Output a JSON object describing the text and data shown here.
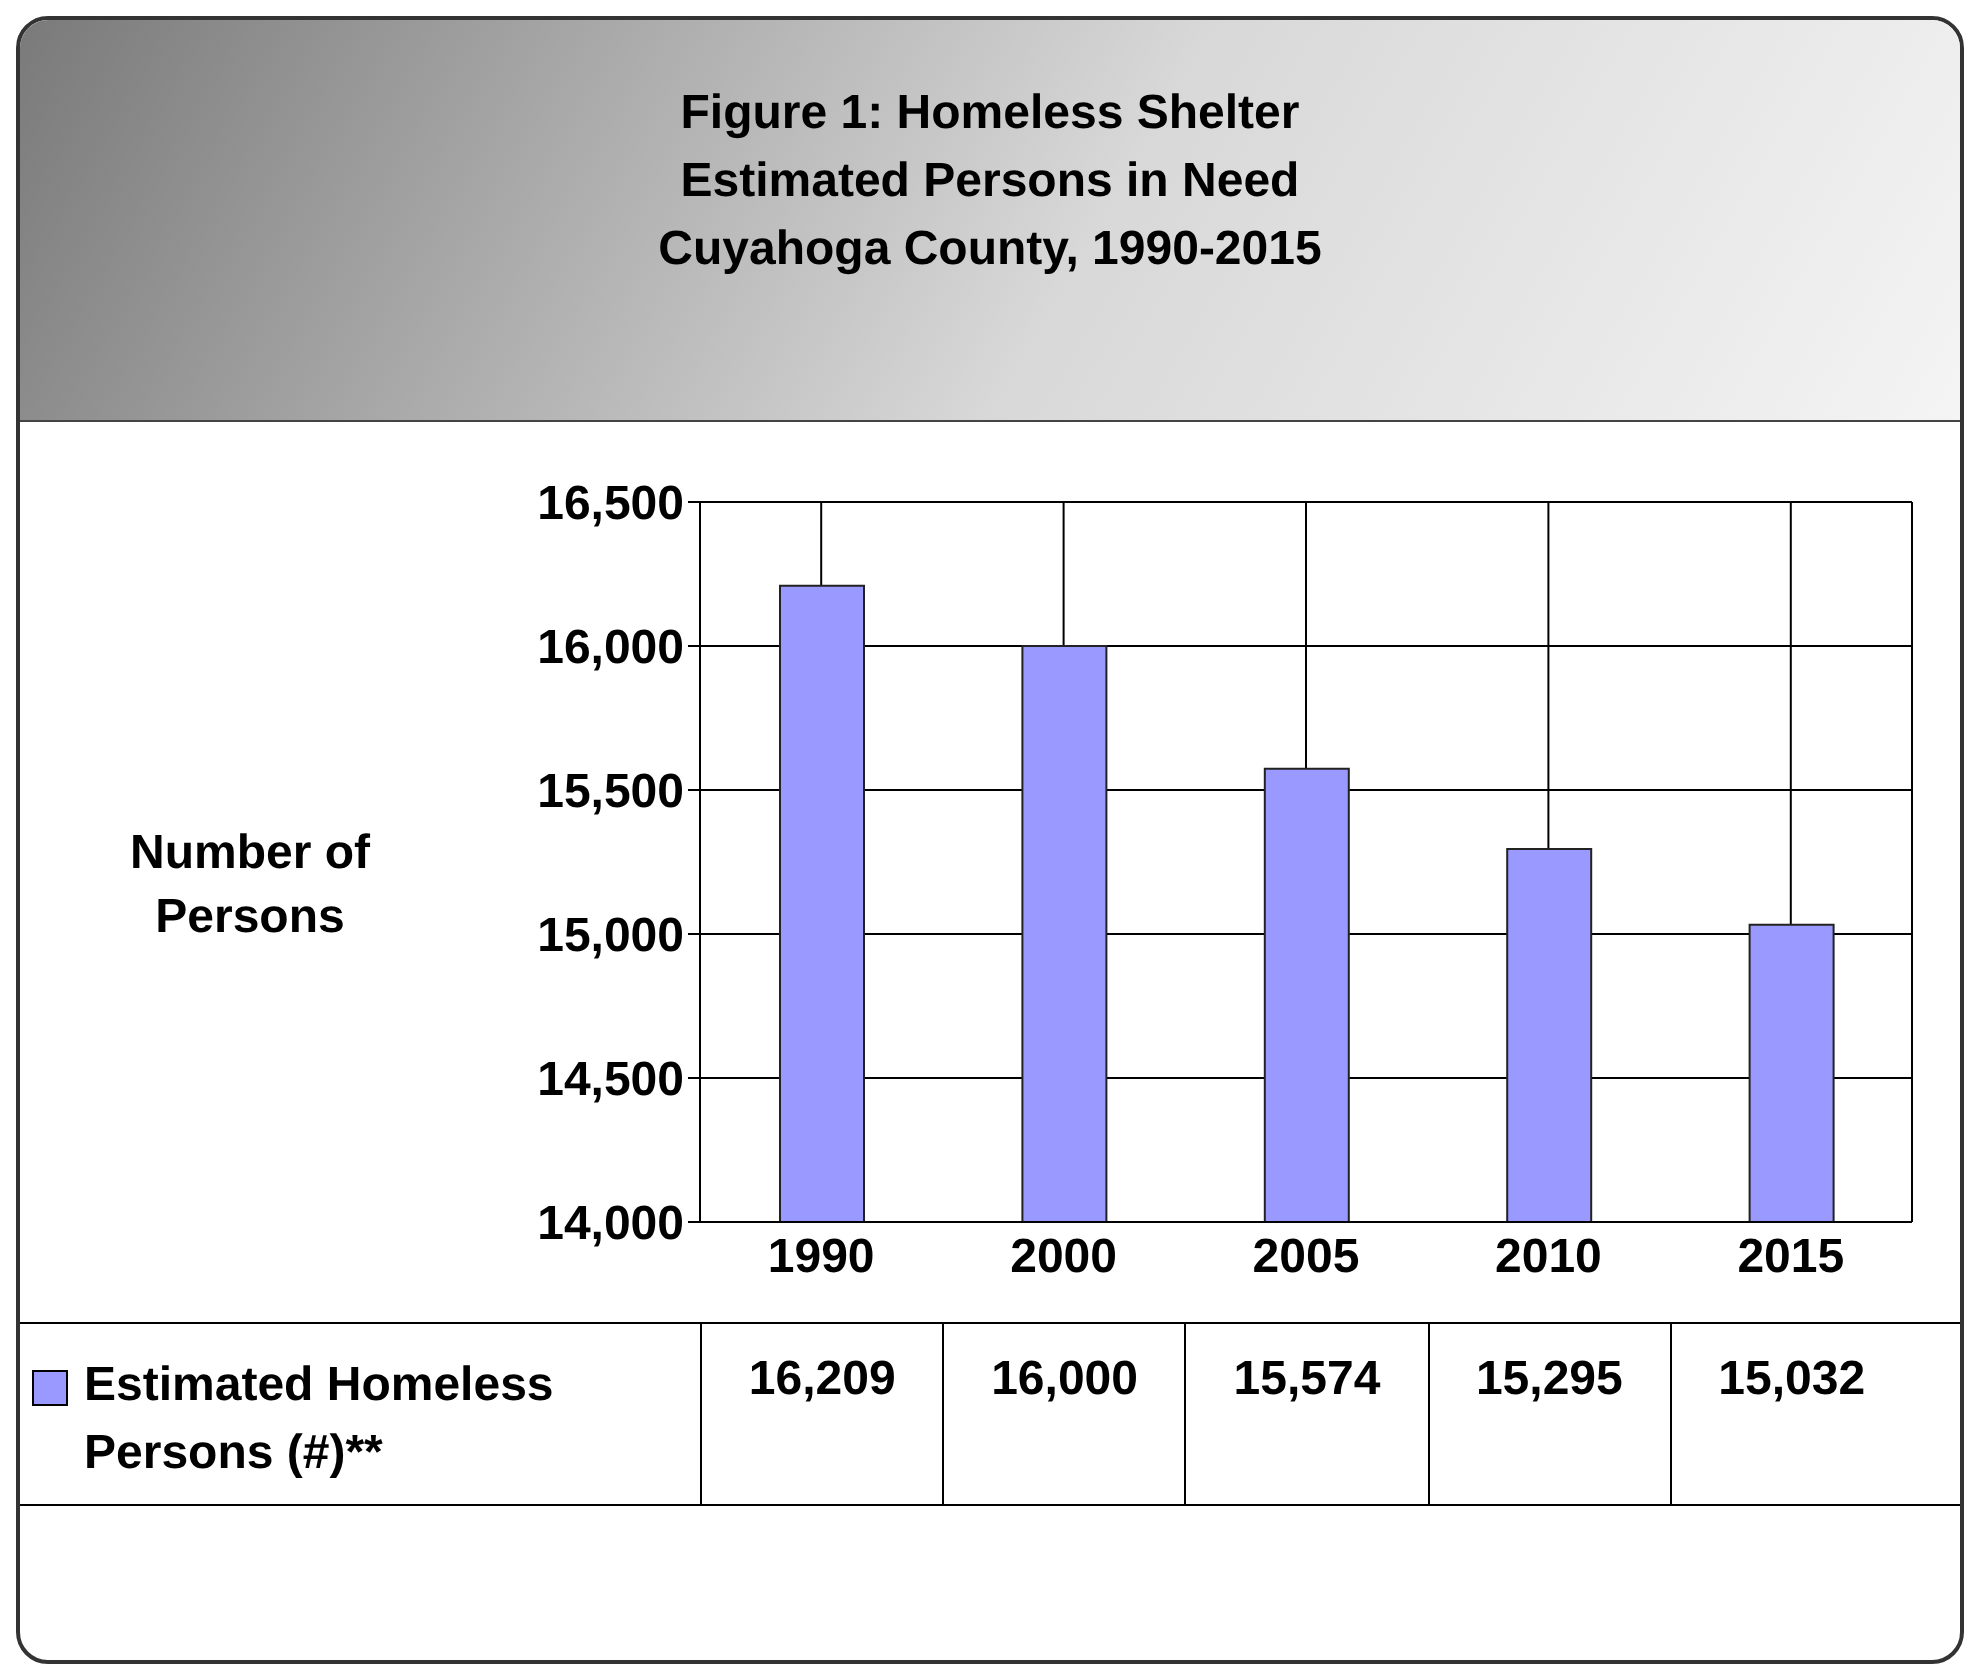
{
  "chart_data": {
    "type": "bar",
    "title": "Figure 1:  Homeless Shelter\nEstimated Persons in Need\nCuyahoga County, 1990-2015",
    "ylabel": "Number of\nPersons",
    "categories": [
      "1990",
      "2000",
      "2005",
      "2010",
      "2015"
    ],
    "series": [
      {
        "name": "Estimated Homeless Persons (#)**",
        "color": "#9999ff",
        "values": [
          16209,
          16000,
          15574,
          15295,
          15032
        ],
        "value_labels": [
          "16,209",
          "16,000",
          "15,574",
          "15,295",
          "15,032"
        ]
      }
    ],
    "ylim": [
      14000,
      16500
    ],
    "yticks": [
      {
        "value": 14000,
        "label": "14,000"
      },
      {
        "value": 14500,
        "label": "14,500"
      },
      {
        "value": 15000,
        "label": "15,000"
      },
      {
        "value": 15500,
        "label": "15,500"
      },
      {
        "value": 16000,
        "label": "16,000"
      },
      {
        "value": 16500,
        "label": "16,500"
      }
    ],
    "grid": true,
    "legend": "bottom left"
  }
}
